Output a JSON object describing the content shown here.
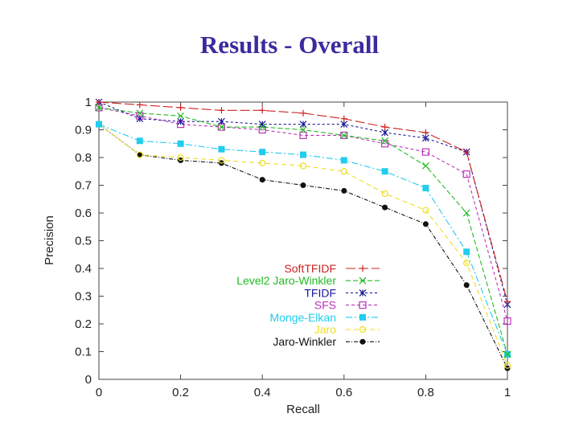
{
  "page": {
    "title": "Results - Overall"
  },
  "chart_data": {
    "type": "line",
    "xlabel": "Recall",
    "ylabel": "Precision",
    "xlim": [
      0,
      1
    ],
    "ylim": [
      0,
      1
    ],
    "x_ticks": [
      "0",
      "0.2",
      "0.4",
      "0.6",
      "0.8",
      "1"
    ],
    "y_ticks": [
      "0",
      "0.1",
      "0.2",
      "0.3",
      "0.4",
      "0.5",
      "0.6",
      "0.7",
      "0.8",
      "0.9",
      "1"
    ],
    "x": [
      0,
      0.1,
      0.2,
      0.3,
      0.4,
      0.5,
      0.6,
      0.7,
      0.8,
      0.9,
      1.0
    ],
    "grid": false,
    "legend_position": "bottom-right",
    "series": [
      {
        "name": "SoftTFIDF",
        "color": "#cc2222",
        "marker": "plus",
        "dash": "12,4",
        "values": [
          1.0,
          0.99,
          0.98,
          0.97,
          0.97,
          0.96,
          0.94,
          0.91,
          0.89,
          0.82,
          0.28
        ]
      },
      {
        "name": "Level2 Jaro-Winkler",
        "color": "#22bb22",
        "marker": "cross",
        "dash": "6,3",
        "values": [
          0.98,
          0.96,
          0.95,
          0.91,
          0.91,
          0.9,
          0.88,
          0.86,
          0.77,
          0.6,
          0.09
        ]
      },
      {
        "name": "TFIDF",
        "color": "#1a1a99",
        "marker": "star",
        "dash": "3,3",
        "values": [
          1.0,
          0.94,
          0.93,
          0.93,
          0.92,
          0.92,
          0.92,
          0.89,
          0.87,
          0.82,
          0.27
        ]
      },
      {
        "name": "SFS",
        "color": "#bb33bb",
        "marker": "square-open",
        "dash": "4,3",
        "values": [
          0.98,
          0.95,
          0.92,
          0.91,
          0.9,
          0.88,
          0.88,
          0.85,
          0.82,
          0.74,
          0.21
        ]
      },
      {
        "name": "Monge-Elkan",
        "color": "#22ccee",
        "marker": "square-filled",
        "dash": "8,3,2,3",
        "values": [
          0.92,
          0.86,
          0.85,
          0.83,
          0.82,
          0.81,
          0.79,
          0.75,
          0.69,
          0.46,
          0.09
        ]
      },
      {
        "name": "Jaro",
        "color": "#eedd22",
        "marker": "circle-open",
        "dash": "6,4",
        "values": [
          0.92,
          0.81,
          0.8,
          0.79,
          0.78,
          0.77,
          0.75,
          0.67,
          0.61,
          0.42,
          0.05
        ]
      },
      {
        "name": "Jaro-Winkler",
        "color": "#111111",
        "marker": "circle-filled",
        "dash": "5,2,1,2",
        "values": [
          0.92,
          0.81,
          0.79,
          0.78,
          0.72,
          0.7,
          0.68,
          0.62,
          0.56,
          0.34,
          0.04
        ]
      }
    ]
  }
}
